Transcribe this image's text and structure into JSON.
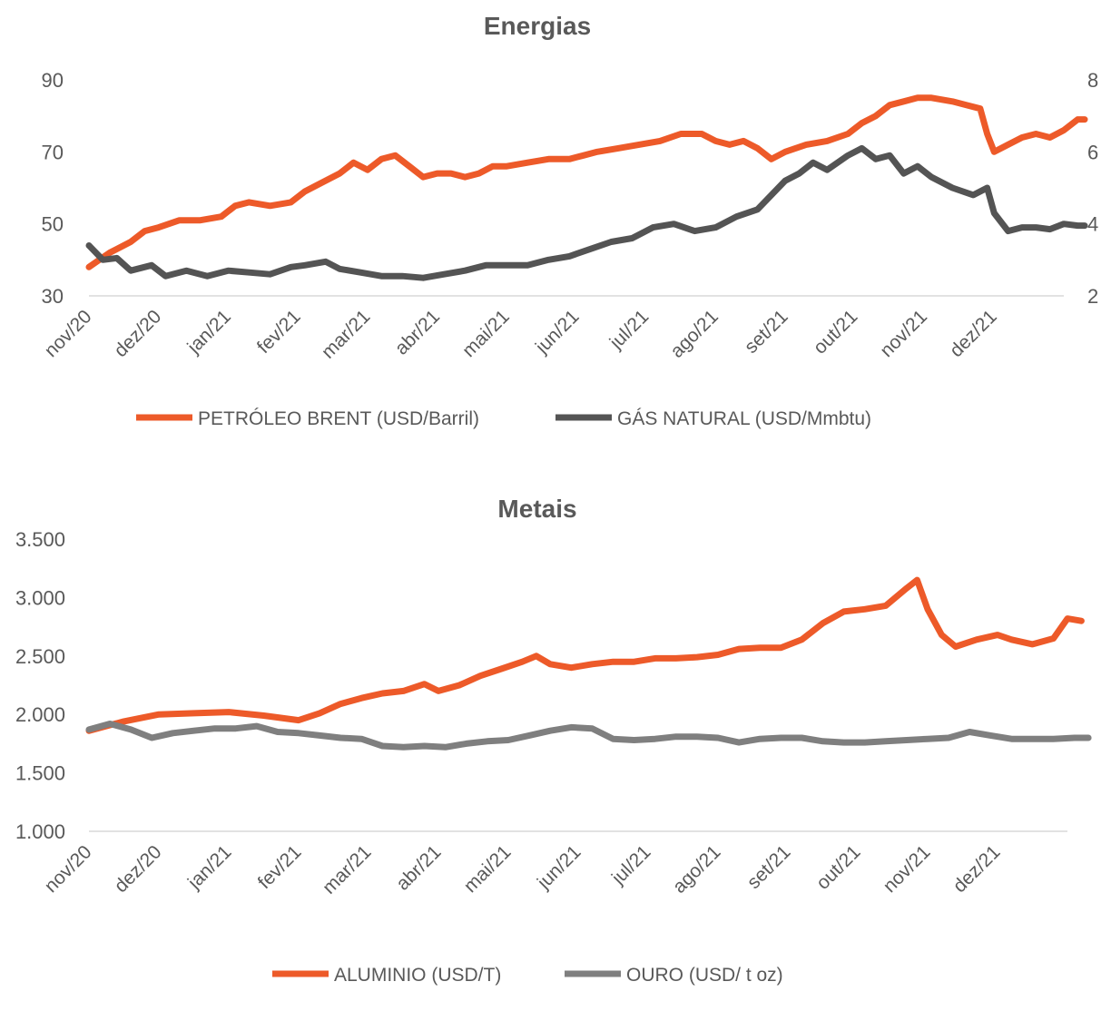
{
  "chart_data": [
    {
      "type": "line",
      "title": "Energias",
      "x_labels": [
        "nov/20",
        "dez/20",
        "jan/21",
        "fev/21",
        "mar/21",
        "abr/21",
        "mai/21",
        "jun/21",
        "jul/21",
        "ago/21",
        "set/21",
        "out/21",
        "nov/21",
        "dez/21"
      ],
      "y_left_ticks": [
        "30",
        "50",
        "70",
        "90"
      ],
      "y_left_range": [
        30,
        90
      ],
      "y_right_ticks": [
        "2",
        "4",
        "6",
        "8"
      ],
      "y_right_range": [
        2,
        8
      ],
      "grid": false,
      "legend_position": "bottom",
      "series": [
        {
          "name": "PETRÓLEO BRENT (USD/Barril)",
          "axis": "left",
          "color": "#ED5A29",
          "points": [
            [
              0,
              38
            ],
            [
              0.15,
              40
            ],
            [
              0.3,
              42
            ],
            [
              0.6,
              45
            ],
            [
              0.8,
              48
            ],
            [
              1.0,
              49
            ],
            [
              1.3,
              51
            ],
            [
              1.6,
              51
            ],
            [
              1.9,
              52
            ],
            [
              2.1,
              55
            ],
            [
              2.3,
              56
            ],
            [
              2.6,
              55
            ],
            [
              2.9,
              56
            ],
            [
              3.1,
              59
            ],
            [
              3.3,
              61
            ],
            [
              3.6,
              64
            ],
            [
              3.8,
              67
            ],
            [
              4.0,
              65
            ],
            [
              4.2,
              68
            ],
            [
              4.4,
              69
            ],
            [
              4.6,
              66
            ],
            [
              4.8,
              63
            ],
            [
              5.0,
              64
            ],
            [
              5.2,
              64
            ],
            [
              5.4,
              63
            ],
            [
              5.6,
              64
            ],
            [
              5.8,
              66
            ],
            [
              6.0,
              66
            ],
            [
              6.3,
              67
            ],
            [
              6.6,
              68
            ],
            [
              6.9,
              68
            ],
            [
              7.1,
              69
            ],
            [
              7.3,
              70
            ],
            [
              7.6,
              71
            ],
            [
              7.9,
              72
            ],
            [
              8.2,
              73
            ],
            [
              8.5,
              75
            ],
            [
              8.8,
              75
            ],
            [
              9.0,
              73
            ],
            [
              9.2,
              72
            ],
            [
              9.4,
              73
            ],
            [
              9.6,
              71
            ],
            [
              9.8,
              68
            ],
            [
              10.0,
              70
            ],
            [
              10.3,
              72
            ],
            [
              10.6,
              73
            ],
            [
              10.9,
              75
            ],
            [
              11.1,
              78
            ],
            [
              11.3,
              80
            ],
            [
              11.5,
              83
            ],
            [
              11.7,
              84
            ],
            [
              11.9,
              85
            ],
            [
              12.1,
              85
            ],
            [
              12.4,
              84
            ],
            [
              12.6,
              83
            ],
            [
              12.8,
              82
            ],
            [
              12.9,
              75
            ],
            [
              13.0,
              70
            ],
            [
              13.2,
              72
            ],
            [
              13.4,
              74
            ],
            [
              13.6,
              75
            ],
            [
              13.8,
              74
            ],
            [
              14.0,
              76
            ],
            [
              14.2,
              79
            ],
            [
              14.3,
              79
            ]
          ]
        },
        {
          "name": "GÁS NATURAL (USD/Mmbtu)",
          "axis": "right",
          "color": "#545454",
          "points": [
            [
              0,
              3.4
            ],
            [
              0.2,
              3.0
            ],
            [
              0.4,
              3.05
            ],
            [
              0.6,
              2.7
            ],
            [
              0.9,
              2.85
            ],
            [
              1.1,
              2.55
            ],
            [
              1.4,
              2.7
            ],
            [
              1.7,
              2.55
            ],
            [
              2.0,
              2.7
            ],
            [
              2.3,
              2.65
            ],
            [
              2.6,
              2.6
            ],
            [
              2.9,
              2.8
            ],
            [
              3.1,
              2.85
            ],
            [
              3.4,
              2.95
            ],
            [
              3.6,
              2.75
            ],
            [
              3.9,
              2.65
            ],
            [
              4.2,
              2.55
            ],
            [
              4.5,
              2.55
            ],
            [
              4.8,
              2.5
            ],
            [
              5.1,
              2.6
            ],
            [
              5.4,
              2.7
            ],
            [
              5.7,
              2.85
            ],
            [
              6.0,
              2.85
            ],
            [
              6.3,
              2.85
            ],
            [
              6.6,
              3.0
            ],
            [
              6.9,
              3.1
            ],
            [
              7.2,
              3.3
            ],
            [
              7.5,
              3.5
            ],
            [
              7.8,
              3.6
            ],
            [
              8.1,
              3.9
            ],
            [
              8.4,
              4.0
            ],
            [
              8.7,
              3.8
            ],
            [
              9.0,
              3.9
            ],
            [
              9.3,
              4.2
            ],
            [
              9.6,
              4.4
            ],
            [
              9.8,
              4.8
            ],
            [
              10.0,
              5.2
            ],
            [
              10.2,
              5.4
            ],
            [
              10.4,
              5.7
            ],
            [
              10.6,
              5.5
            ],
            [
              10.9,
              5.9
            ],
            [
              11.1,
              6.1
            ],
            [
              11.3,
              5.8
            ],
            [
              11.5,
              5.9
            ],
            [
              11.7,
              5.4
            ],
            [
              11.9,
              5.6
            ],
            [
              12.1,
              5.3
            ],
            [
              12.4,
              5.0
            ],
            [
              12.7,
              4.8
            ],
            [
              12.9,
              5.0
            ],
            [
              13.0,
              4.3
            ],
            [
              13.2,
              3.8
            ],
            [
              13.4,
              3.9
            ],
            [
              13.6,
              3.9
            ],
            [
              13.8,
              3.85
            ],
            [
              14.0,
              4.0
            ],
            [
              14.2,
              3.95
            ],
            [
              14.3,
              3.95
            ]
          ]
        }
      ]
    },
    {
      "type": "line",
      "title": "Metais",
      "x_labels": [
        "nov/20",
        "dez/20",
        "jan/21",
        "fev/21",
        "mar/21",
        "abr/21",
        "mai/21",
        "jun/21",
        "jul/21",
        "ago/21",
        "set/21",
        "out/21",
        "nov/21",
        "dez/21"
      ],
      "y_ticks": [
        "1.000",
        "1.500",
        "2.000",
        "2.500",
        "3.000",
        "3.500"
      ],
      "y_range": [
        1000,
        3500
      ],
      "grid": false,
      "legend_position": "bottom",
      "series": [
        {
          "name": "ALUMINIO (USD/T)",
          "color": "#ED5A29",
          "points": [
            [
              0,
              1860
            ],
            [
              0.5,
              1940
            ],
            [
              1.0,
              2000
            ],
            [
              1.5,
              2010
            ],
            [
              2.0,
              2020
            ],
            [
              2.5,
              1990
            ],
            [
              3.0,
              1950
            ],
            [
              3.3,
              2010
            ],
            [
              3.6,
              2090
            ],
            [
              3.9,
              2140
            ],
            [
              4.2,
              2180
            ],
            [
              4.5,
              2200
            ],
            [
              4.8,
              2260
            ],
            [
              5.0,
              2200
            ],
            [
              5.3,
              2250
            ],
            [
              5.6,
              2330
            ],
            [
              5.9,
              2390
            ],
            [
              6.2,
              2450
            ],
            [
              6.4,
              2500
            ],
            [
              6.6,
              2430
            ],
            [
              6.9,
              2400
            ],
            [
              7.2,
              2430
            ],
            [
              7.5,
              2450
            ],
            [
              7.8,
              2450
            ],
            [
              8.1,
              2480
            ],
            [
              8.4,
              2480
            ],
            [
              8.7,
              2490
            ],
            [
              9.0,
              2510
            ],
            [
              9.3,
              2560
            ],
            [
              9.6,
              2570
            ],
            [
              9.9,
              2570
            ],
            [
              10.2,
              2640
            ],
            [
              10.5,
              2780
            ],
            [
              10.8,
              2880
            ],
            [
              11.1,
              2900
            ],
            [
              11.4,
              2930
            ],
            [
              11.7,
              3080
            ],
            [
              11.85,
              3150
            ],
            [
              12.0,
              2900
            ],
            [
              12.2,
              2680
            ],
            [
              12.4,
              2580
            ],
            [
              12.7,
              2640
            ],
            [
              13.0,
              2680
            ],
            [
              13.2,
              2640
            ],
            [
              13.5,
              2600
            ],
            [
              13.8,
              2650
            ],
            [
              14.0,
              2820
            ],
            [
              14.2,
              2800
            ]
          ]
        },
        {
          "name": "OURO (USD/ t oz)",
          "color": "#7F7F7F",
          "points": [
            [
              0,
              1870
            ],
            [
              0.3,
              1920
            ],
            [
              0.6,
              1870
            ],
            [
              0.9,
              1800
            ],
            [
              1.2,
              1840
            ],
            [
              1.5,
              1860
            ],
            [
              1.8,
              1880
            ],
            [
              2.1,
              1880
            ],
            [
              2.4,
              1900
            ],
            [
              2.7,
              1850
            ],
            [
              3.0,
              1840
            ],
            [
              3.3,
              1820
            ],
            [
              3.6,
              1800
            ],
            [
              3.9,
              1790
            ],
            [
              4.2,
              1730
            ],
            [
              4.5,
              1720
            ],
            [
              4.8,
              1730
            ],
            [
              5.1,
              1720
            ],
            [
              5.4,
              1750
            ],
            [
              5.7,
              1770
            ],
            [
              6.0,
              1780
            ],
            [
              6.3,
              1820
            ],
            [
              6.6,
              1860
            ],
            [
              6.9,
              1890
            ],
            [
              7.2,
              1880
            ],
            [
              7.5,
              1790
            ],
            [
              7.8,
              1780
            ],
            [
              8.1,
              1790
            ],
            [
              8.4,
              1810
            ],
            [
              8.7,
              1810
            ],
            [
              9.0,
              1800
            ],
            [
              9.3,
              1760
            ],
            [
              9.6,
              1790
            ],
            [
              9.9,
              1800
            ],
            [
              10.2,
              1800
            ],
            [
              10.5,
              1770
            ],
            [
              10.8,
              1760
            ],
            [
              11.1,
              1760
            ],
            [
              11.4,
              1770
            ],
            [
              11.7,
              1780
            ],
            [
              12.0,
              1790
            ],
            [
              12.3,
              1800
            ],
            [
              12.6,
              1850
            ],
            [
              12.9,
              1820
            ],
            [
              13.2,
              1790
            ],
            [
              13.5,
              1790
            ],
            [
              13.8,
              1790
            ],
            [
              14.1,
              1800
            ],
            [
              14.3,
              1800
            ]
          ]
        }
      ]
    }
  ]
}
